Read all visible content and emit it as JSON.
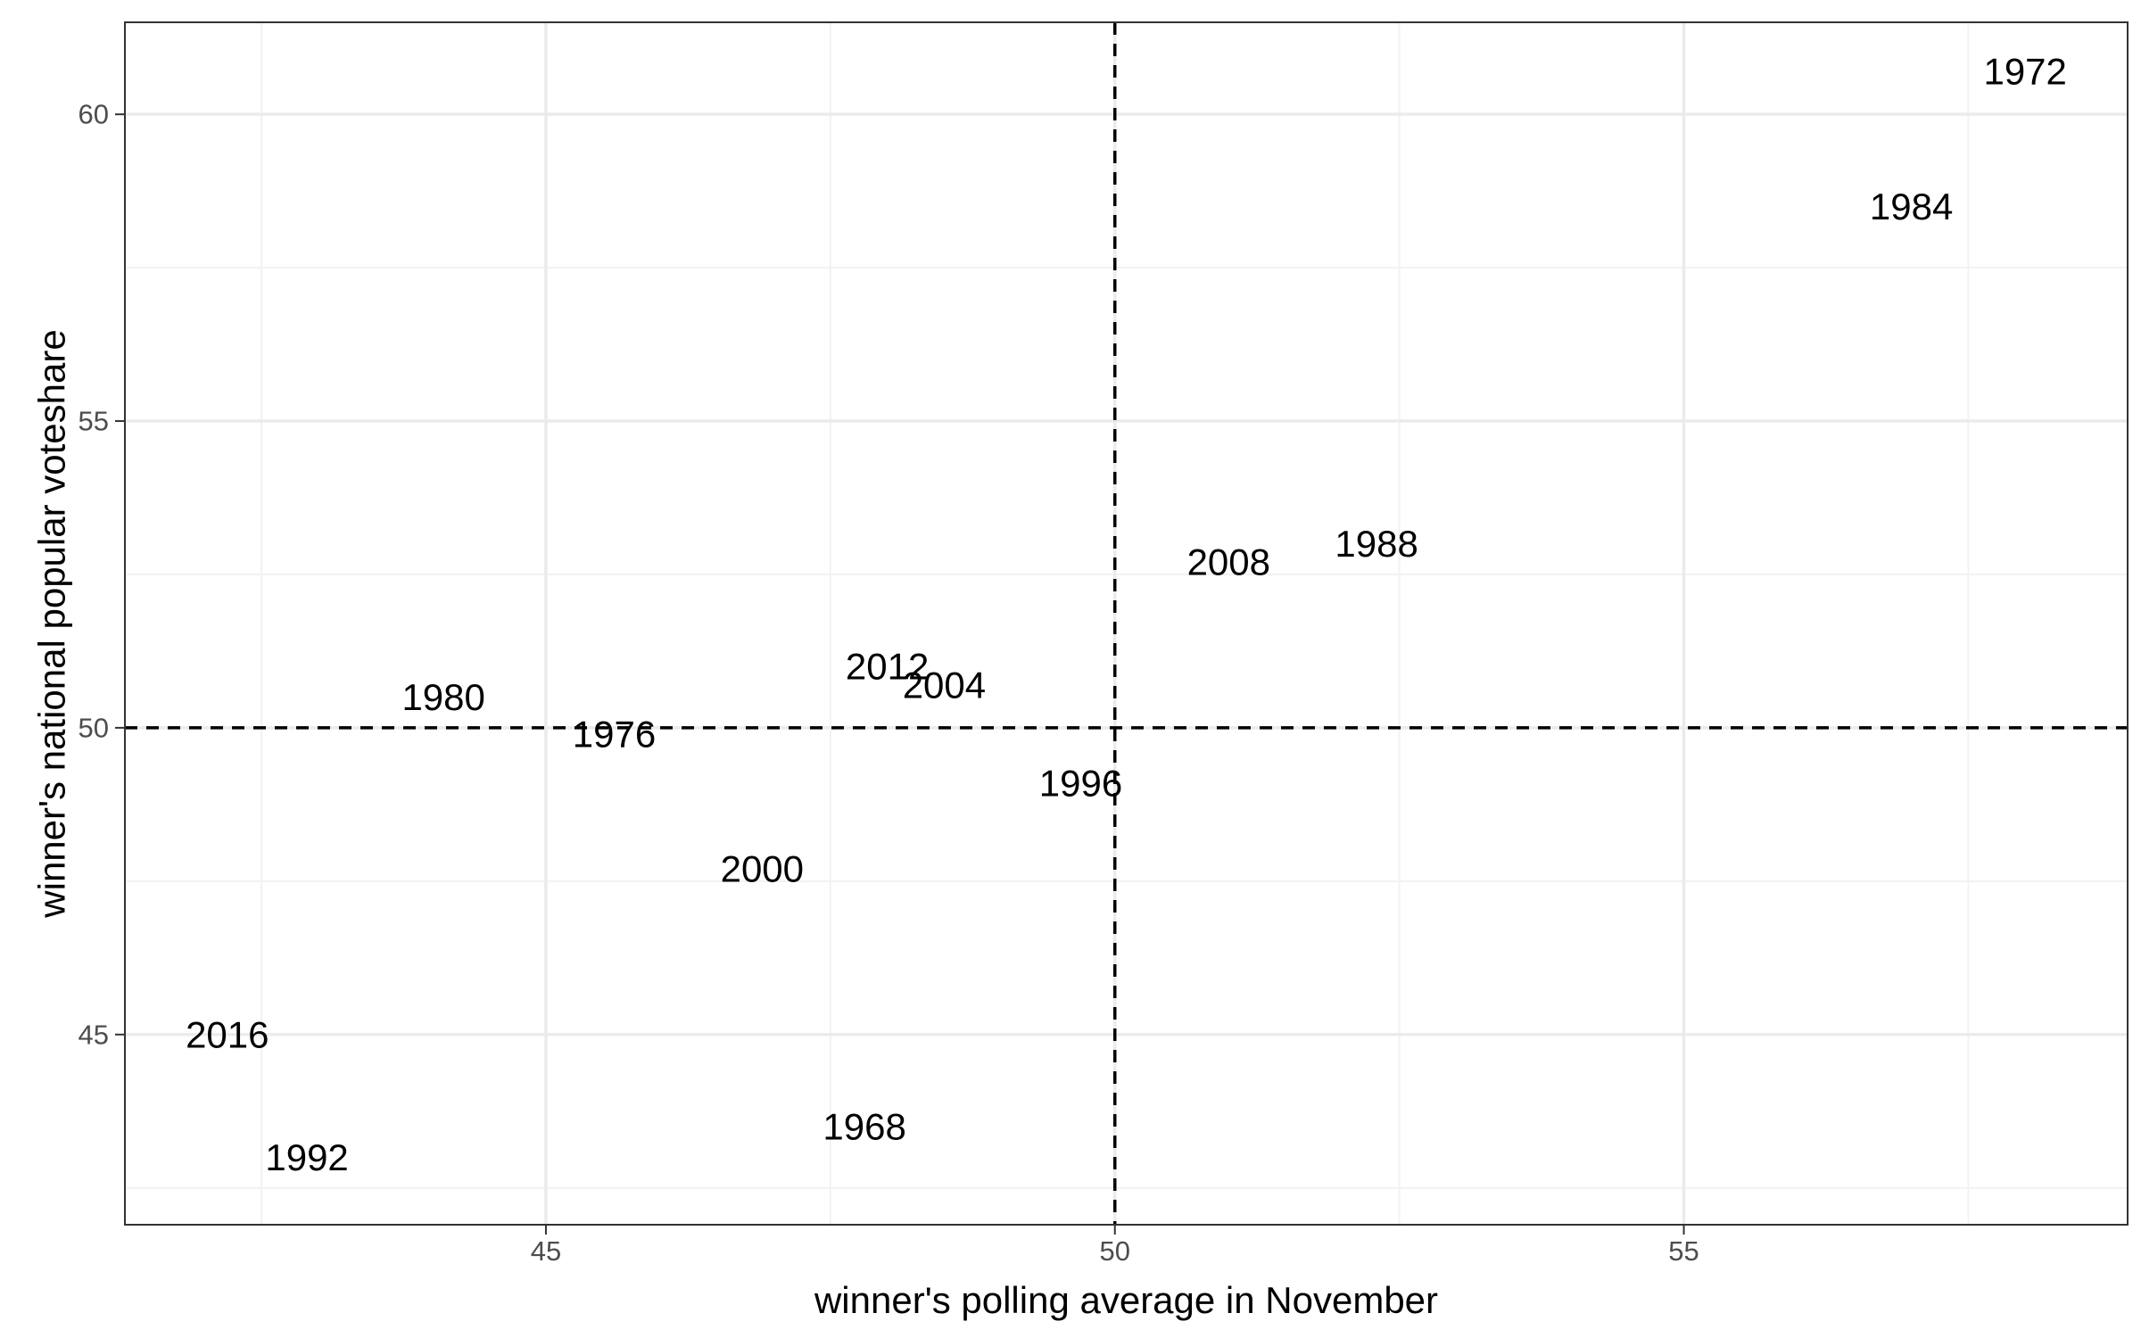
{
  "chart_data": {
    "type": "scatter",
    "marker": "text",
    "title": "",
    "xlabel": "winner's polling average in November",
    "ylabel": "winner's national popular voteshare",
    "xlim": [
      41.3,
      58.9
    ],
    "ylim": [
      41.9,
      61.5
    ],
    "x_ticks": [
      45,
      50,
      55
    ],
    "x_tick_labels": [
      "45",
      "50",
      "55"
    ],
    "y_ticks": [
      45,
      50,
      55,
      60
    ],
    "y_tick_labels": [
      "45",
      "50",
      "55",
      "60"
    ],
    "x_minor_ticks": [
      42.5,
      47.5,
      52.5,
      57.5
    ],
    "y_minor_ticks": [
      42.5,
      47.5,
      52.5,
      57.5
    ],
    "grid": true,
    "theme": "bw",
    "reference_lines": [
      {
        "axis": "x",
        "value": 50,
        "style": "dashed"
      },
      {
        "axis": "y",
        "value": 50,
        "style": "dashed"
      }
    ],
    "points": [
      {
        "label": "1972",
        "x": 58.0,
        "y": 60.7
      },
      {
        "label": "1984",
        "x": 57.0,
        "y": 58.5
      },
      {
        "label": "1988",
        "x": 52.3,
        "y": 53.0
      },
      {
        "label": "2008",
        "x": 51.0,
        "y": 52.7
      },
      {
        "label": "2012",
        "x": 48.0,
        "y": 51.0
      },
      {
        "label": "2004",
        "x": 48.5,
        "y": 50.7
      },
      {
        "label": "1980",
        "x": 44.1,
        "y": 50.5
      },
      {
        "label": "1976",
        "x": 45.6,
        "y": 49.9
      },
      {
        "label": "1996",
        "x": 49.7,
        "y": 49.1
      },
      {
        "label": "2000",
        "x": 46.9,
        "y": 47.7
      },
      {
        "label": "2016",
        "x": 42.2,
        "y": 45.0
      },
      {
        "label": "1968",
        "x": 47.8,
        "y": 43.5
      },
      {
        "label": "1992",
        "x": 42.9,
        "y": 43.0
      }
    ],
    "colors": {
      "text": "#000000",
      "panel_border": "#333333",
      "major_grid": "#ebebeb",
      "minor_grid": "#f2f2f2",
      "tick_text": "#4d4d4d",
      "reference_line": "#000000",
      "background": "#ffffff"
    }
  }
}
